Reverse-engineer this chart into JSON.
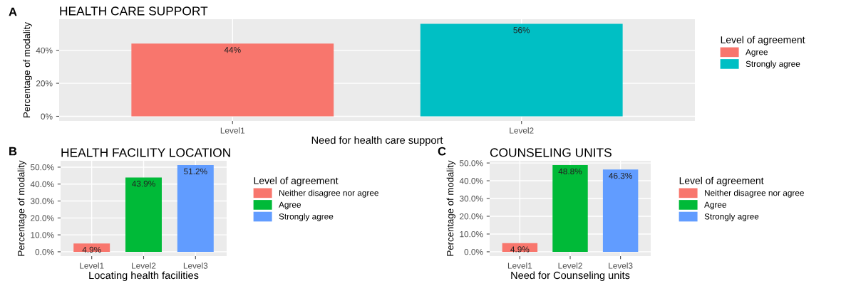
{
  "chart_data": [
    {
      "type": "bar",
      "title": "HEALTH CARE SUPPORT",
      "annotations": [
        "A"
      ],
      "xlabel": "Need for health care support",
      "ylabel": "Percentage of modality",
      "legend_title": "Level of agreement",
      "legend": "right",
      "grid": true,
      "categories": [
        "Level1",
        "Level2"
      ],
      "series": [
        {
          "name": "Agree",
          "color": "#f8766d",
          "values": [
            44,
            null
          ],
          "value_labels": [
            "44%",
            null
          ]
        },
        {
          "name": "Strongly agree",
          "color": "#00bfc4",
          "values": [
            null,
            56
          ],
          "value_labels": [
            null,
            "56%"
          ]
        }
      ],
      "ylim": [
        -2.8,
        58.8
      ],
      "yticks": [
        {
          "value": 0,
          "label": "0%"
        },
        {
          "value": 20,
          "label": "20%"
        },
        {
          "value": 40,
          "label": "40%"
        }
      ]
    },
    {
      "type": "bar",
      "title": "HEALTH FACILITY LOCATION",
      "annotations": [
        "B"
      ],
      "xlabel": "Locating health facilities",
      "ylabel": "Percentage of modality",
      "legend_title": "Level of agreement",
      "legend": "right",
      "grid": true,
      "categories": [
        "Level1",
        "Level2",
        "Level3"
      ],
      "series": [
        {
          "name": "Neither disagree nor agree",
          "color": "#f8766d",
          "values": [
            4.9,
            null,
            null
          ],
          "value_labels": [
            "4.9%",
            null,
            null
          ]
        },
        {
          "name": "Agree",
          "color": "#00ba38",
          "values": [
            null,
            43.9,
            null
          ],
          "value_labels": [
            null,
            "43.9%",
            null
          ]
        },
        {
          "name": "Strongly agree",
          "color": "#619cff",
          "values": [
            null,
            null,
            51.2
          ],
          "value_labels": [
            null,
            null,
            "51.2%"
          ]
        }
      ],
      "ylim": [
        -2.56,
        53.76
      ],
      "yticks": [
        {
          "value": 0,
          "label": "0.0%"
        },
        {
          "value": 10,
          "label": "10.0%"
        },
        {
          "value": 20,
          "label": "20.0%"
        },
        {
          "value": 30,
          "label": "30.0%"
        },
        {
          "value": 40,
          "label": "40.0%"
        },
        {
          "value": 50,
          "label": "50.0%"
        }
      ]
    },
    {
      "type": "bar",
      "title": "COUNSELING UNITS",
      "annotations": [
        "C"
      ],
      "xlabel": "Need for Counseling units",
      "ylabel": "Percentage of modality",
      "legend_title": "Level of agreement",
      "legend": "right",
      "grid": true,
      "categories": [
        "Level1",
        "Level2",
        "Level3"
      ],
      "series": [
        {
          "name": "Neither disagree nor agree",
          "color": "#f8766d",
          "values": [
            4.9,
            null,
            null
          ],
          "value_labels": [
            "4.9%",
            null,
            null
          ]
        },
        {
          "name": "Agree",
          "color": "#00ba38",
          "values": [
            null,
            48.8,
            null
          ],
          "value_labels": [
            null,
            "48.8%",
            null
          ]
        },
        {
          "name": "Strongly agree",
          "color": "#619cff",
          "values": [
            null,
            null,
            46.3
          ],
          "value_labels": [
            null,
            null,
            "46.3%"
          ]
        }
      ],
      "ylim": [
        -2.44,
        51.24
      ],
      "yticks": [
        {
          "value": 0,
          "label": "0.0%"
        },
        {
          "value": 10,
          "label": "10.0%"
        },
        {
          "value": 20,
          "label": "20.0%"
        },
        {
          "value": 30,
          "label": "30.0%"
        },
        {
          "value": 40,
          "label": "40.0%"
        },
        {
          "value": 50,
          "label": "50.0%"
        }
      ]
    }
  ]
}
